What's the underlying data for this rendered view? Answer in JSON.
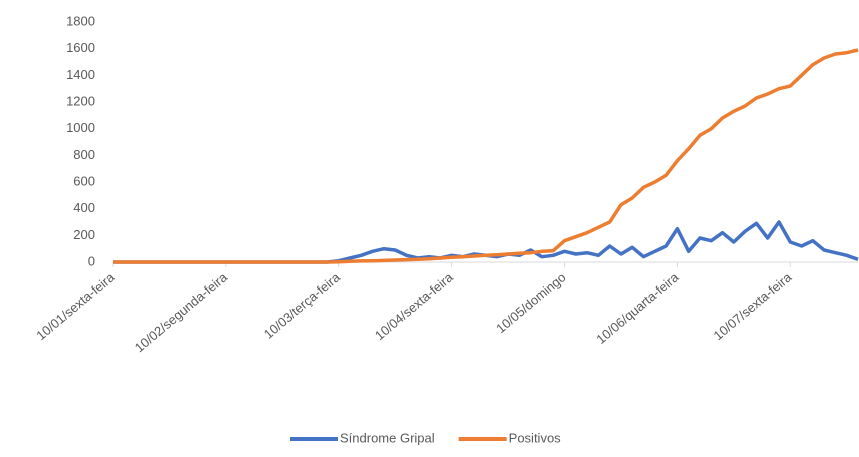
{
  "chart_data": {
    "type": "line",
    "categories": [
      "10/01/sexta-feira",
      null,
      null,
      null,
      null,
      null,
      null,
      null,
      null,
      null,
      "10/02/segunda-feira",
      null,
      null,
      null,
      null,
      null,
      null,
      null,
      null,
      null,
      "10/03/terça-feira",
      null,
      null,
      null,
      null,
      null,
      null,
      null,
      null,
      null,
      "10/04/sexta-feira",
      null,
      null,
      null,
      null,
      null,
      null,
      null,
      null,
      null,
      "10/05/domingo",
      null,
      null,
      null,
      null,
      null,
      null,
      null,
      null,
      null,
      "10/06/quarta-feira",
      null,
      null,
      null,
      null,
      null,
      null,
      null,
      null,
      null,
      "10/07/sexta-feira",
      null,
      null,
      null,
      null,
      null,
      null
    ],
    "series": [
      {
        "name": "Síndrome Gripal",
        "color": "#4472c4",
        "values": [
          0,
          0,
          0,
          0,
          0,
          0,
          0,
          0,
          0,
          0,
          0,
          0,
          0,
          0,
          0,
          0,
          0,
          0,
          0,
          0,
          10,
          30,
          50,
          80,
          100,
          90,
          50,
          30,
          40,
          30,
          50,
          40,
          60,
          50,
          40,
          60,
          50,
          90,
          40,
          50,
          80,
          60,
          70,
          50,
          120,
          60,
          110,
          40,
          80,
          120,
          250,
          80,
          180,
          160,
          220,
          150,
          230,
          290,
          180,
          300,
          150,
          120,
          160,
          90,
          70,
          50,
          20
        ]
      },
      {
        "name": "Positivos",
        "color": "#ed7d31",
        "values": [
          0,
          0,
          0,
          0,
          0,
          0,
          0,
          0,
          0,
          0,
          0,
          0,
          0,
          0,
          0,
          0,
          0,
          0,
          0,
          0,
          2,
          5,
          8,
          10,
          12,
          15,
          18,
          20,
          25,
          30,
          35,
          40,
          45,
          50,
          55,
          60,
          65,
          70,
          80,
          85,
          160,
          190,
          220,
          260,
          300,
          430,
          480,
          560,
          600,
          650,
          760,
          850,
          950,
          1000,
          1080,
          1130,
          1170,
          1230,
          1260,
          1300,
          1320,
          1400,
          1480,
          1530,
          1560,
          1570,
          1590
        ]
      }
    ],
    "ylim": [
      0,
      1800
    ],
    "yticks": [
      0,
      200,
      400,
      600,
      800,
      1000,
      1200,
      1400,
      1600,
      1800
    ],
    "grid": false,
    "legend": "bottom"
  }
}
